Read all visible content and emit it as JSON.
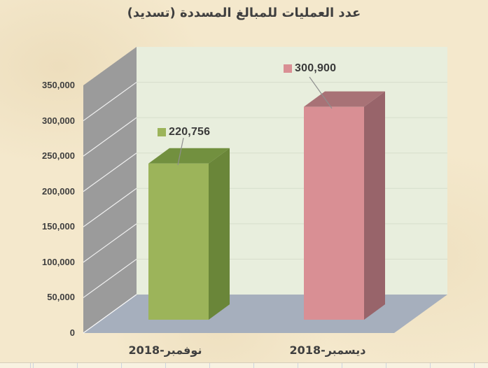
{
  "title": "عدد العمليات للمبالغ المسددة (تسديد)",
  "chart_data": {
    "type": "bar",
    "style": "3d-column",
    "title": "عدد العمليات للمبالغ المسددة (تسديد)",
    "categories": [
      "نوفمبر-2018",
      "ديسمبر-2018"
    ],
    "values": [
      220756,
      300900
    ],
    "data_labels": [
      "220,756",
      "300,900"
    ],
    "point_colors": [
      {
        "front": "#9cb45a",
        "top": "#72903f",
        "side": "#6a8639"
      },
      {
        "front": "#d98f94",
        "top": "#a87276",
        "side": "#98646a"
      }
    ],
    "xlabel": "",
    "ylabel": "",
    "ylim": [
      0,
      350000
    ],
    "ytick_step": 50000,
    "ytick_labels": [
      "0",
      "50,000",
      "100,000",
      "150,000",
      "200,000",
      "250,000",
      "300,000",
      "350,000"
    ],
    "grid": true,
    "legend": "none",
    "walls": {
      "back": "#e8eedd",
      "side": "#9b9b9b",
      "floor": "#a6afbd",
      "back_gridline": "#d6ddcb",
      "side_gridline": "#ffffff"
    },
    "leader_line_color": "#8f8f8f"
  },
  "page": {
    "background": "#f4e8cc",
    "text_color": "#3f3f3f",
    "spreadsheet_strip": {
      "bg": "#f8f2e1",
      "gridline_color": "#cdd4dd"
    }
  }
}
